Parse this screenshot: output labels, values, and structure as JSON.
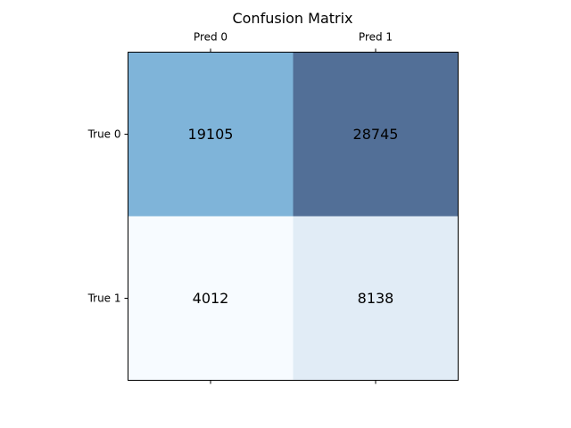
{
  "chart_data": {
    "type": "heatmap",
    "title": "Confusion Matrix",
    "x_tick_labels": [
      "Pred 0",
      "Pred 1"
    ],
    "y_tick_labels": [
      "True 0",
      "True 1"
    ],
    "values": [
      [
        19105,
        28745
      ],
      [
        4012,
        8138
      ]
    ],
    "colormap": [
      "#f7fbff",
      "#deebf7",
      "#6baed6",
      "#2f5c8a"
    ],
    "cell_colors": [
      [
        "#7fb4d9",
        "#526f97"
      ],
      [
        "#f7fbff",
        "#e1ecf6"
      ]
    ],
    "label_color": "#000000",
    "grid": false,
    "legend": "none"
  }
}
